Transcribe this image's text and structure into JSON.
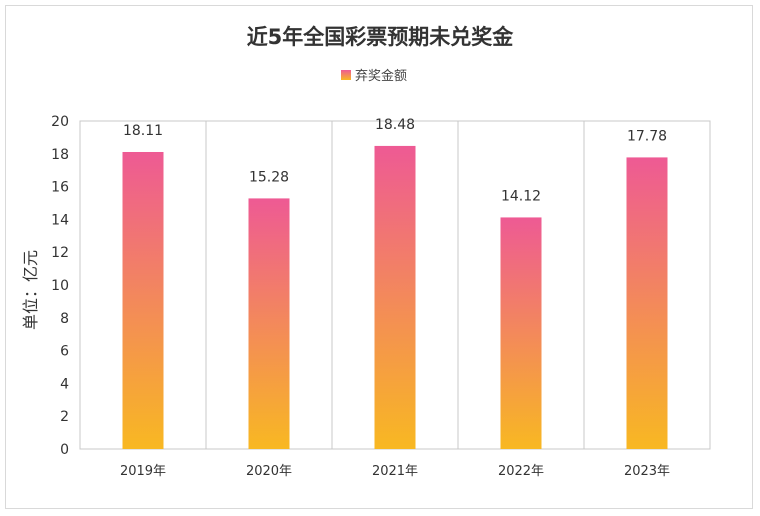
{
  "chart_data": {
    "type": "bar",
    "title": "近5年全国彩票预期未兑奖金",
    "ylabel": "单位：亿元",
    "xlabel": "",
    "categories": [
      "2019年",
      "2020年",
      "2021年",
      "2022年",
      "2023年"
    ],
    "series": [
      {
        "name": "弃奖金额",
        "values": [
          18.11,
          15.28,
          18.48,
          14.12,
          17.78
        ]
      }
    ],
    "data_labels": [
      "18.11",
      "15.28",
      "18.48",
      "14.12",
      "17.78"
    ],
    "ylim": [
      0,
      20
    ],
    "yticks": [
      0,
      2,
      4,
      6,
      8,
      10,
      12,
      14,
      16,
      18,
      20
    ],
    "ytick_labels": [
      "0",
      "2",
      "4",
      "6",
      "8",
      "10",
      "12",
      "14",
      "16",
      "18",
      "20"
    ],
    "legend_position": "top",
    "grid": "vertical-category-separators",
    "colors": {
      "gradient_top": "#ee5a94",
      "gradient_bottom": "#f8b822",
      "axis": "#c8c8c8",
      "text": "#333333"
    }
  }
}
